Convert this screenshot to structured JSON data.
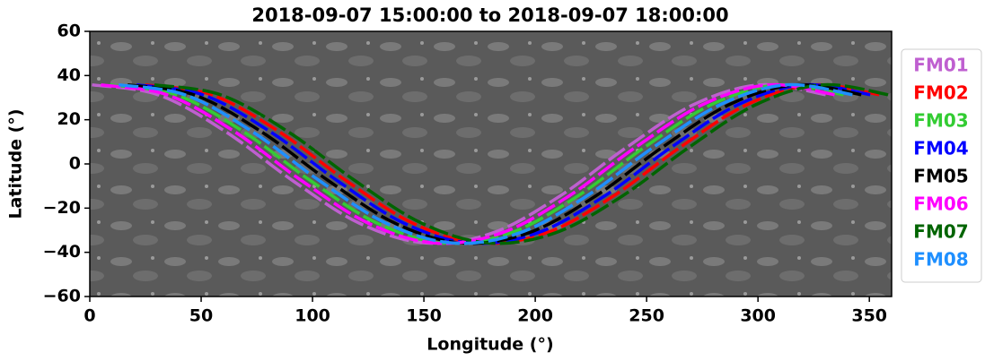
{
  "chart_data": {
    "type": "line",
    "title": "2018-09-07 15:00:00 to 2018-09-07 18:00:00",
    "xlabel": "Longitude (°)",
    "ylabel": "Latitude (°)",
    "xlim": [
      0,
      360
    ],
    "ylim": [
      -60,
      60
    ],
    "xticks": [
      0,
      50,
      100,
      150,
      200,
      250,
      300,
      350
    ],
    "yticks": [
      {
        "value": -60,
        "label": "−60"
      },
      {
        "value": -40,
        "label": "−40"
      },
      {
        "value": -20,
        "label": "−20"
      },
      0,
      20,
      40,
      60
    ],
    "legend": "outside right",
    "series": [
      {
        "name": "FM01",
        "color": "#bf5fd0",
        "x": [
          1,
          31,
          61,
          91,
          121,
          151,
          181,
          211,
          241,
          271,
          301,
          331
        ],
        "values": [
          35.8,
          31.2,
          14.6,
          -7.5,
          -26.8,
          -35.8,
          -31.2,
          -14.6,
          7.5,
          26.8,
          35.8,
          31.2
        ]
      },
      {
        "name": "FM02",
        "color": "#ff0000",
        "x": [
          25,
          55,
          85,
          115,
          145,
          175,
          205,
          235,
          265,
          295,
          325,
          355
        ],
        "values": [
          35.8,
          31.2,
          14.6,
          -7.5,
          -26.8,
          -35.8,
          -31.2,
          -14.6,
          7.5,
          26.8,
          35.8,
          31.2
        ]
      },
      {
        "name": "FM03",
        "color": "#33cc33",
        "x": [
          9,
          39,
          69,
          99,
          129,
          159,
          189,
          219,
          249,
          279,
          309,
          339
        ],
        "values": [
          35.8,
          31.2,
          14.6,
          -7.5,
          -26.8,
          -35.8,
          -31.2,
          -14.6,
          7.5,
          26.8,
          35.8,
          31.2
        ]
      },
      {
        "name": "FM04",
        "color": "#0000ff",
        "x": [
          21,
          51,
          81,
          111,
          141,
          171,
          201,
          231,
          261,
          291,
          321,
          351
        ],
        "values": [
          35.8,
          31.2,
          14.6,
          -7.5,
          -26.8,
          -35.8,
          -31.2,
          -14.6,
          7.5,
          26.8,
          35.8,
          31.2
        ]
      },
      {
        "name": "FM05",
        "color": "#000000",
        "x": [
          17,
          47,
          77,
          107,
          137,
          167,
          197,
          227,
          257,
          287,
          317,
          347
        ],
        "values": [
          35.8,
          31.2,
          14.6,
          -7.5,
          -26.8,
          -35.8,
          -31.2,
          -14.6,
          7.5,
          26.8,
          35.8,
          31.2
        ]
      },
      {
        "name": "FM06",
        "color": "#ff00ff",
        "x": [
          5,
          35,
          65,
          95,
          125,
          155,
          185,
          215,
          245,
          275,
          305,
          335
        ],
        "values": [
          35.8,
          31.2,
          14.6,
          -7.5,
          -26.8,
          -35.8,
          -31.2,
          -14.6,
          7.5,
          26.8,
          35.8,
          31.2
        ]
      },
      {
        "name": "FM07",
        "color": "#006400",
        "x": [
          29,
          59,
          89,
          119,
          149,
          179,
          209,
          239,
          269,
          299,
          329,
          359
        ],
        "values": [
          35.8,
          31.2,
          14.6,
          -7.5,
          -26.8,
          -35.8,
          -31.2,
          -14.6,
          7.5,
          26.8,
          35.8,
          31.2
        ]
      },
      {
        "name": "FM08",
        "color": "#1e8fff",
        "x": [
          13,
          43,
          73,
          103,
          133,
          163,
          193,
          223,
          253,
          283,
          313,
          343
        ],
        "values": [
          35.8,
          31.2,
          14.6,
          -7.5,
          -26.8,
          -35.8,
          -31.2,
          -14.6,
          7.5,
          26.8,
          35.8,
          31.2
        ]
      }
    ]
  }
}
